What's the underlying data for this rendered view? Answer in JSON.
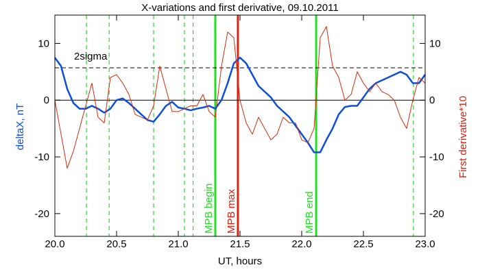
{
  "chart_data": {
    "type": "line",
    "title": "X-variations and first derivative, 09.10.2011",
    "xlabel": "UT, hours",
    "ylabel": "deltaX, nT",
    "y2label": "First derivative*10",
    "xlim": [
      20.0,
      23.0
    ],
    "ylim": [
      -24,
      15
    ],
    "y2lim": [
      -24,
      15
    ],
    "xticks": [
      {
        "value": 20.0,
        "label": "20.0"
      },
      {
        "value": 20.5,
        "label": "20.5"
      },
      {
        "value": 21.0,
        "label": "21.0"
      },
      {
        "value": 21.5,
        "label": "21.5"
      },
      {
        "value": 22.0,
        "label": "22.0"
      },
      {
        "value": 22.5,
        "label": "22.5"
      },
      {
        "value": 23.0,
        "label": "23.0"
      }
    ],
    "yticks": [
      -20,
      -10,
      0,
      10
    ],
    "y2ticks": [
      -20,
      -10,
      0,
      10
    ],
    "x": [
      20.0,
      20.05,
      20.1,
      20.15,
      20.2,
      20.25,
      20.3,
      20.35,
      20.4,
      20.45,
      20.5,
      20.55,
      20.6,
      20.65,
      20.7,
      20.75,
      20.8,
      20.85,
      20.9,
      20.95,
      21.0,
      21.05,
      21.1,
      21.15,
      21.2,
      21.25,
      21.3,
      21.35,
      21.4,
      21.45,
      21.5,
      21.55,
      21.6,
      21.65,
      21.7,
      21.75,
      21.8,
      21.85,
      21.9,
      21.95,
      22.0,
      22.05,
      22.1,
      22.15,
      22.2,
      22.25,
      22.3,
      22.35,
      22.4,
      22.45,
      22.5,
      22.55,
      22.6,
      22.65,
      22.7,
      22.75,
      22.8,
      22.85,
      22.9,
      22.95,
      23.0
    ],
    "series": [
      {
        "color": "#0a4ee0",
        "axis": "y",
        "values": [
          7.5,
          6,
          2,
          -0.5,
          -1.5,
          -1.5,
          -1,
          -1.5,
          -2.2,
          -1.5,
          0,
          0.3,
          -0.5,
          -1.5,
          -2.5,
          -3.5,
          -3.8,
          -2.5,
          -1,
          -0.3,
          -1.3,
          -1.5,
          -1.8,
          -1.5,
          -1.3,
          -1,
          -1.5,
          0,
          3,
          6.5,
          7.5,
          6.5,
          4.5,
          2.5,
          1.5,
          0.5,
          -1,
          -2,
          -3,
          -4.5,
          -6,
          -7.5,
          -9.2,
          -9.2,
          -7,
          -5,
          -2.5,
          -1.2,
          -1,
          -1,
          0.5,
          2,
          3,
          3.5,
          4,
          4.5,
          5,
          4.5,
          3,
          3,
          4.5
        ]
      },
      {
        "color": "#d42a0a",
        "axis": "y2",
        "values": [
          0,
          -6,
          -12,
          -9,
          -5,
          -1,
          3,
          -3,
          -4,
          4,
          4.5,
          3,
          1,
          -2.5,
          -3,
          -3.5,
          -1,
          6,
          2,
          -2,
          -2,
          -1.5,
          -1,
          -1,
          1,
          -2,
          -3,
          6,
          12,
          11,
          0,
          -4,
          -6,
          -3,
          -5,
          -7,
          -6,
          -3,
          -4,
          -4,
          -7,
          -7.5,
          -5,
          11,
          13,
          6,
          4,
          0,
          1,
          5,
          3,
          1.5,
          3,
          1.5,
          1,
          0,
          -3,
          -5,
          0,
          4,
          3
        ]
      }
    ],
    "hlines": [
      {
        "value": 5.7,
        "label": "2sigma",
        "style": "dashed",
        "color": "#000000"
      },
      {
        "value": 0,
        "style": "solid",
        "color": "#000000"
      }
    ],
    "vlines": [
      {
        "x": 20.256,
        "color": "#22dd22",
        "style": "dashed"
      },
      {
        "x": 20.44,
        "color": "#22dd22",
        "style": "dashed"
      },
      {
        "x": 20.8,
        "color": "#22dd22",
        "style": "dashed"
      },
      {
        "x": 21.05,
        "color": "#22dd22",
        "style": "dashed"
      },
      {
        "x": 21.12,
        "color": "#22dd22",
        "style": "dashed"
      },
      {
        "x": 22.905,
        "color": "#22dd22",
        "style": "dashed"
      },
      {
        "x": 21.3,
        "color": "#22dd22",
        "style": "solid",
        "label": "MPB begin"
      },
      {
        "x": 21.483,
        "color": "#e02010",
        "style": "solid",
        "label": "MPB max"
      },
      {
        "x": 22.117,
        "color": "#22dd22",
        "style": "solid",
        "label": "MPB end"
      }
    ]
  }
}
